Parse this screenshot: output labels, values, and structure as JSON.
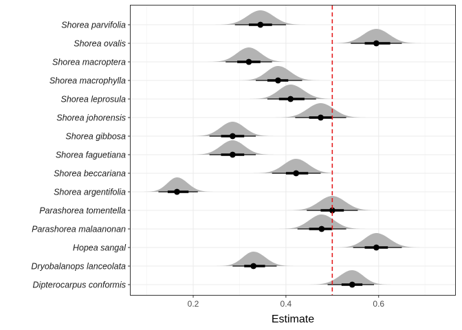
{
  "chart_data": {
    "type": "halfeye",
    "xlabel": "Estimate",
    "ylabel": "",
    "title": "",
    "xlim": [
      0.065,
      0.765
    ],
    "x_ticks": [
      0.2,
      0.4,
      0.6
    ],
    "x_tick_labels": [
      "0.2",
      "0.4",
      "0.6"
    ],
    "reference_line": {
      "x": 0.5,
      "style": "dashed",
      "color": "#e41a1c"
    },
    "grid": true,
    "colors": {
      "density": "#b3b3b3",
      "point": "#000000",
      "panel_border": "#333333",
      "grid_major": "#ebebeb",
      "grid_minor": "#f5f5f5"
    },
    "series": [
      {
        "name": "Shorea parvifolia",
        "median": 0.345,
        "inner": [
          0.32,
          0.37
        ],
        "outer": [
          0.29,
          0.4
        ]
      },
      {
        "name": "Shorea ovalis",
        "median": 0.595,
        "inner": [
          0.57,
          0.625
        ],
        "outer": [
          0.54,
          0.65
        ]
      },
      {
        "name": "Shorea macroptera",
        "median": 0.32,
        "inner": [
          0.295,
          0.345
        ],
        "outer": [
          0.27,
          0.37
        ]
      },
      {
        "name": "Shorea macrophylla",
        "median": 0.383,
        "inner": [
          0.36,
          0.405
        ],
        "outer": [
          0.335,
          0.435
        ]
      },
      {
        "name": "Shorea leprosula",
        "median": 0.41,
        "inner": [
          0.385,
          0.44
        ],
        "outer": [
          0.36,
          0.465
        ]
      },
      {
        "name": "Shorea johorensis",
        "median": 0.475,
        "inner": [
          0.45,
          0.5
        ],
        "outer": [
          0.42,
          0.53
        ]
      },
      {
        "name": "Shorea gibbosa",
        "median": 0.285,
        "inner": [
          0.26,
          0.31
        ],
        "outer": [
          0.235,
          0.335
        ]
      },
      {
        "name": "Shorea faguetiana",
        "median": 0.285,
        "inner": [
          0.26,
          0.31
        ],
        "outer": [
          0.235,
          0.335
        ]
      },
      {
        "name": "Shorea beccariana",
        "median": 0.422,
        "inner": [
          0.4,
          0.448
        ],
        "outer": [
          0.37,
          0.475
        ]
      },
      {
        "name": "Shorea argentifolia",
        "median": 0.165,
        "inner": [
          0.145,
          0.19
        ],
        "outer": [
          0.125,
          0.21
        ]
      },
      {
        "name": "Parashorea tomentella",
        "median": 0.5,
        "inner": [
          0.475,
          0.525
        ],
        "outer": [
          0.445,
          0.555
        ]
      },
      {
        "name": "Parashorea malaanonan",
        "median": 0.477,
        "inner": [
          0.45,
          0.5
        ],
        "outer": [
          0.425,
          0.53
        ]
      },
      {
        "name": "Hopea sangal",
        "median": 0.595,
        "inner": [
          0.57,
          0.62
        ],
        "outer": [
          0.545,
          0.65
        ]
      },
      {
        "name": "Dryobalanops lanceolata",
        "median": 0.33,
        "inner": [
          0.31,
          0.355
        ],
        "outer": [
          0.285,
          0.38
        ]
      },
      {
        "name": "Dipterocarpus conformis",
        "median": 0.543,
        "inner": [
          0.52,
          0.565
        ],
        "outer": [
          0.49,
          0.59
        ]
      }
    ]
  }
}
